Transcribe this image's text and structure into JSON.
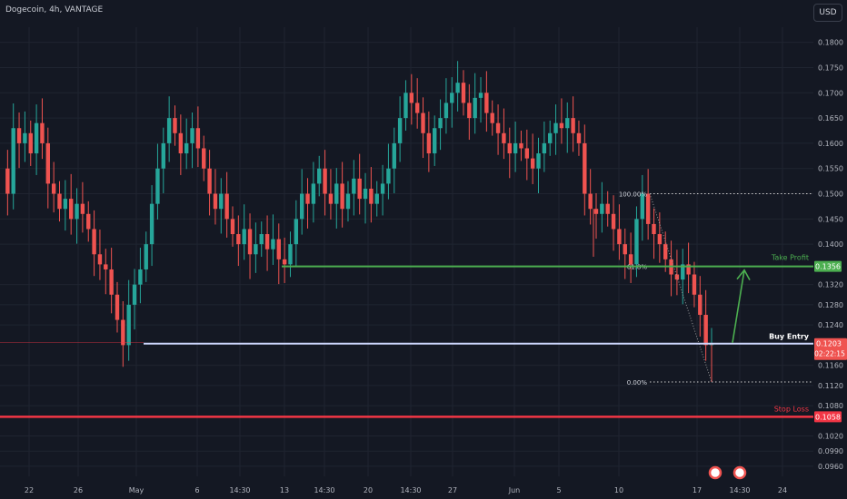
{
  "header": {
    "title": "Dogecoin, 4h, VANTAGE",
    "currency_button": "USD"
  },
  "colors": {
    "background": "#141823",
    "up": "#26a69a",
    "down": "#ef5350",
    "take_profit": "#4caf50",
    "buy_entry": "#cfd8ff",
    "stop_loss": "#f23645",
    "grid": "#1f2430",
    "text": "#b2b5be"
  },
  "chart_data": {
    "type": "candlestick",
    "y_range": [
      0.094,
      0.183
    ],
    "y_ticks": [
      "0.1800",
      "0.1750",
      "0.1700",
      "0.1650",
      "0.1600",
      "0.1550",
      "0.1500",
      "0.1450",
      "0.1400",
      "0.1320",
      "0.1280",
      "0.1240",
      "0.1160",
      "0.1120",
      "0.1080",
      "0.1020",
      "0.0990",
      "0.0960"
    ],
    "x_ticks": [
      "22",
      "26",
      "May",
      "6",
      "14:30",
      "13",
      "14:30",
      "20",
      "14:30",
      "27",
      "Jun",
      "5",
      "10",
      "17",
      "14:30",
      "24"
    ],
    "price_path": [
      0.155,
      0.15,
      0.163,
      0.16,
      0.162,
      0.158,
      0.164,
      0.16,
      0.152,
      0.15,
      0.147,
      0.149,
      0.145,
      0.148,
      0.146,
      0.143,
      0.138,
      0.136,
      0.135,
      0.13,
      0.125,
      0.12,
      0.128,
      0.132,
      0.135,
      0.14,
      0.148,
      0.155,
      0.16,
      0.165,
      0.162,
      0.158,
      0.16,
      0.163,
      0.159,
      0.155,
      0.15,
      0.147,
      0.15,
      0.145,
      0.142,
      0.14,
      0.143,
      0.138,
      0.14,
      0.142,
      0.139,
      0.141,
      0.137,
      0.136,
      0.14,
      0.145,
      0.15,
      0.148,
      0.152,
      0.155,
      0.15,
      0.148,
      0.152,
      0.147,
      0.15,
      0.153,
      0.149,
      0.151,
      0.148,
      0.15,
      0.152,
      0.155,
      0.16,
      0.165,
      0.17,
      0.168,
      0.166,
      0.162,
      0.158,
      0.163,
      0.165,
      0.168,
      0.17,
      0.172,
      0.168,
      0.165,
      0.169,
      0.17,
      0.166,
      0.164,
      0.162,
      0.16,
      0.158,
      0.16,
      0.159,
      0.157,
      0.155,
      0.158,
      0.16,
      0.162,
      0.164,
      0.163,
      0.165,
      0.162,
      0.16,
      0.15,
      0.147,
      0.146,
      0.148,
      0.146,
      0.143,
      0.14,
      0.138,
      0.136,
      0.145,
      0.15,
      0.144,
      0.142,
      0.14,
      0.137,
      0.134,
      0.133,
      0.136,
      0.134,
      0.13,
      0.126,
      0.12,
      0.1203
    ],
    "levels": [
      {
        "name": "take-profit",
        "label": "Take Profit",
        "value": 0.1356,
        "price_label": "0.1356"
      },
      {
        "name": "buy-entry",
        "label": "Buy Entry",
        "value": 0.1203,
        "price_label": "0.1203",
        "countdown": "02:22:15"
      },
      {
        "name": "stop-loss",
        "label": "Stop Loss",
        "value": 0.1058,
        "price_label": "0.1058"
      }
    ],
    "fib": [
      {
        "label": "100.00%",
        "value": 0.15
      },
      {
        "label": "61.8%",
        "value": 0.1356
      },
      {
        "label": "0.00%",
        "value": 0.1127
      }
    ]
  }
}
